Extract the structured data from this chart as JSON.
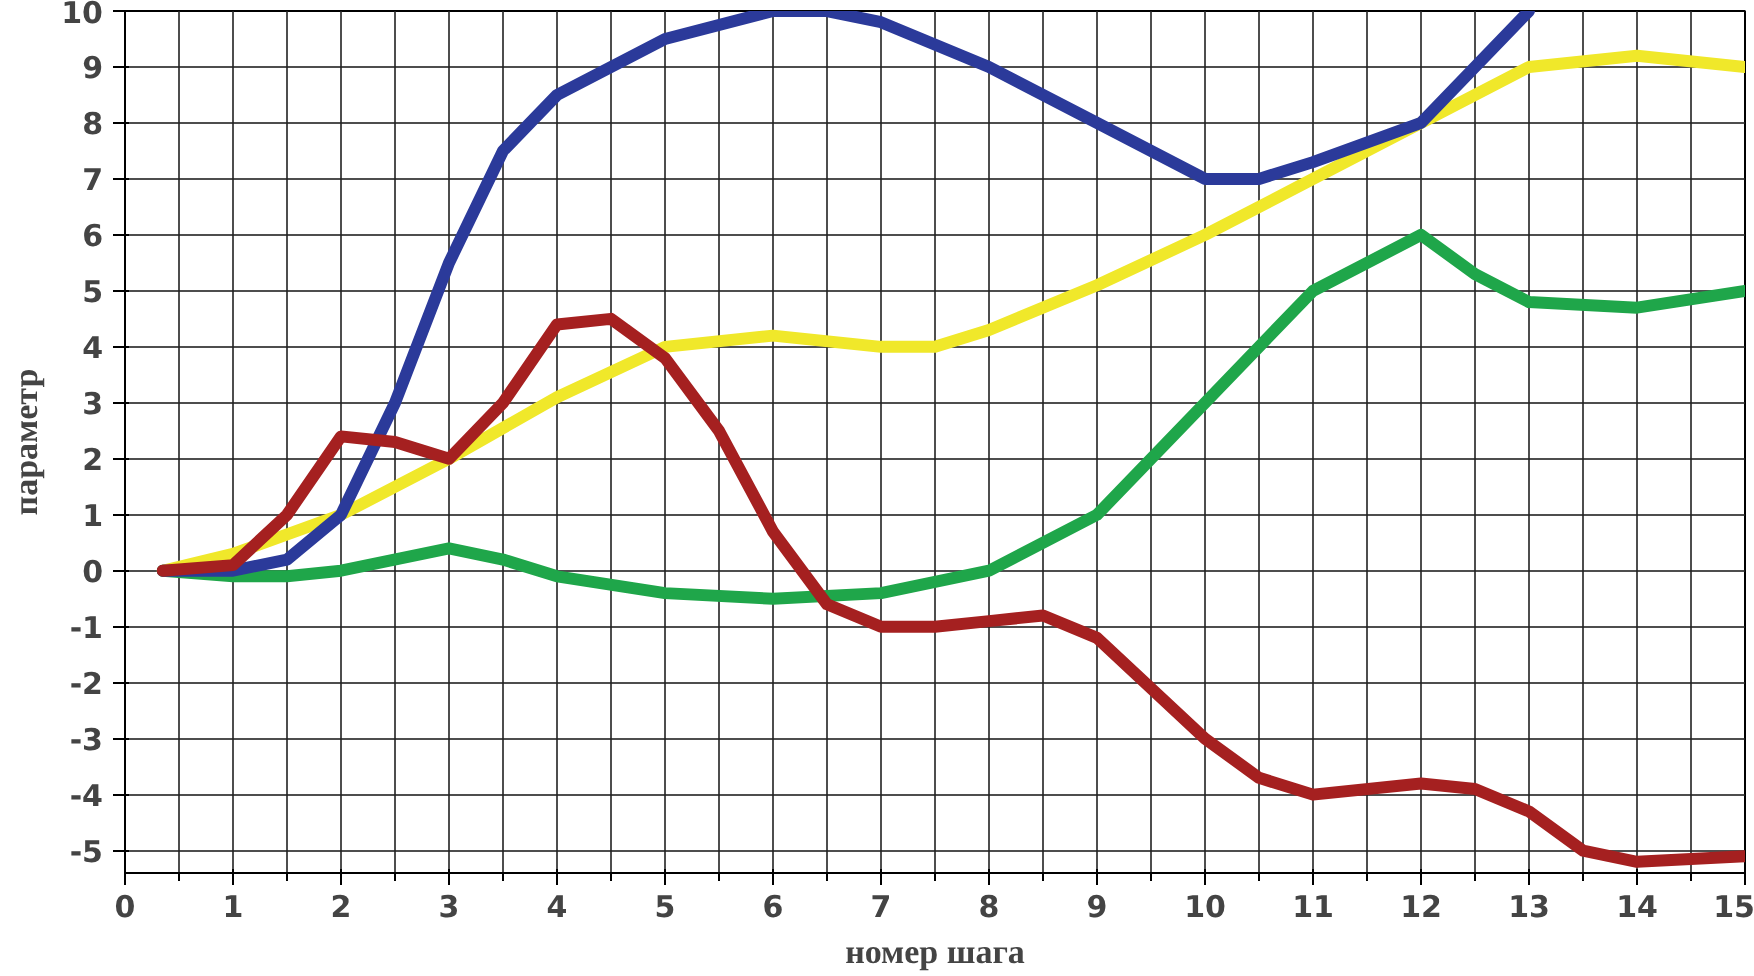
{
  "chart_data": {
    "type": "line",
    "xlabel": "номер шага",
    "ylabel": "параметр",
    "xlim": [
      0,
      15
    ],
    "ylim": [
      -5.4,
      10
    ],
    "xticks": [
      0,
      1,
      2,
      3,
      4,
      5,
      6,
      7,
      8,
      9,
      10,
      11,
      12,
      13,
      14,
      15
    ],
    "yticks": [
      -5,
      -4,
      -3,
      -2,
      -1,
      0,
      1,
      2,
      3,
      4,
      5,
      6,
      7,
      8,
      9,
      10
    ],
    "grid": true,
    "line_style": "solid",
    "series": [
      {
        "color": "#f0e82a",
        "x": [
          0.35,
          1,
          2,
          3,
          4,
          5,
          6,
          7,
          7.5,
          8,
          9,
          10,
          11,
          12,
          13,
          14,
          15
        ],
        "values": [
          0,
          0.3,
          1,
          2,
          3.1,
          4,
          4.2,
          4,
          4,
          4.3,
          5.1,
          6,
          7,
          8,
          9,
          9.2,
          9
        ]
      },
      {
        "color": "#1fa64a",
        "x": [
          0.35,
          1,
          1.5,
          2,
          3,
          3.5,
          4,
          5,
          6,
          7,
          8,
          9,
          10,
          11,
          12,
          12.5,
          13,
          14,
          15
        ],
        "values": [
          0,
          -0.1,
          -0.1,
          0,
          0.4,
          0.2,
          -0.1,
          -0.4,
          -0.5,
          -0.4,
          0,
          1,
          3,
          5,
          6,
          5.3,
          4.8,
          4.7,
          5
        ]
      },
      {
        "color": "#2b3a9a",
        "x": [
          0.35,
          1,
          1.5,
          2,
          2.5,
          3,
          3.5,
          4,
          5,
          6,
          6.5,
          7,
          8,
          9,
          10,
          10.5,
          11,
          12,
          13
        ],
        "values": [
          0,
          0,
          0.2,
          1,
          3,
          5.5,
          7.5,
          8.5,
          9.5,
          10,
          10,
          9.8,
          9,
          8,
          7,
          7,
          7.3,
          8,
          10
        ]
      },
      {
        "color": "#a52020",
        "x": [
          0.35,
          1,
          1.5,
          2,
          2.5,
          3,
          3.5,
          4,
          4.5,
          5,
          5.5,
          6,
          6.5,
          7,
          7.5,
          8,
          8.5,
          9,
          10,
          10.5,
          11,
          12,
          12.5,
          13,
          13.5,
          14,
          15
        ],
        "values": [
          0,
          0.1,
          1,
          2.4,
          2.3,
          2,
          3,
          4.4,
          4.5,
          3.8,
          2.5,
          0.7,
          -0.6,
          -1,
          -1,
          -0.9,
          -0.8,
          -1.2,
          -3,
          -3.7,
          -4,
          -3.8,
          -3.9,
          -4.3,
          -5,
          -5.2,
          -5.1
        ]
      }
    ]
  }
}
